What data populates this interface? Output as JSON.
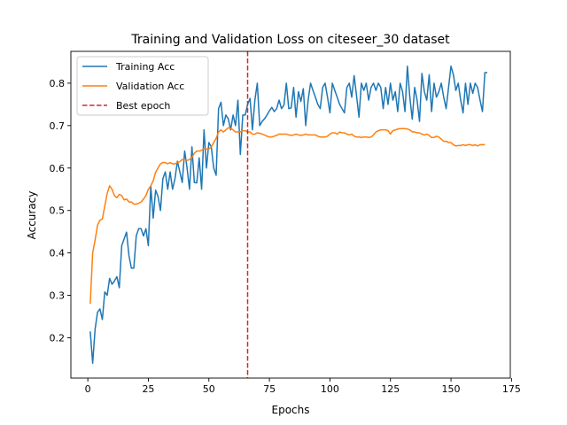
{
  "chart_data": {
    "type": "line",
    "title": "Training and Validation Loss on citeseer_30 dataset",
    "xlabel": "Epochs",
    "ylabel": "Accuracy",
    "xlim": [
      -7,
      174.5
    ],
    "ylim": [
      0.105,
      0.875
    ],
    "xticks": [
      0,
      25,
      50,
      75,
      100,
      125,
      150,
      175
    ],
    "yticks": [
      0.2,
      0.3,
      0.4,
      0.5,
      0.6,
      0.7,
      0.8
    ],
    "xtick_labels": [
      "0",
      "25",
      "50",
      "75",
      "100",
      "125",
      "150",
      "175"
    ],
    "ytick_labels": [
      "0.2",
      "0.3",
      "0.4",
      "0.5",
      "0.6",
      "0.7",
      "0.8"
    ],
    "grid": false,
    "legend_position": "upper-left",
    "x_start": 1,
    "series": [
      {
        "name": "Training Acc",
        "color": "#1f77b4",
        "values": [
          0.215,
          0.14,
          0.22,
          0.26,
          0.268,
          0.243,
          0.308,
          0.3,
          0.34,
          0.326,
          0.334,
          0.344,
          0.318,
          0.417,
          0.433,
          0.449,
          0.393,
          0.364,
          0.364,
          0.44,
          0.457,
          0.457,
          0.44,
          0.457,
          0.417,
          0.558,
          0.482,
          0.548,
          0.533,
          0.5,
          0.575,
          0.591,
          0.55,
          0.591,
          0.55,
          0.575,
          0.616,
          0.591,
          0.566,
          0.64,
          0.6,
          0.55,
          0.65,
          0.566,
          0.565,
          0.624,
          0.55,
          0.69,
          0.6,
          0.66,
          0.65,
          0.6,
          0.583,
          0.74,
          0.755,
          0.7,
          0.725,
          0.716,
          0.69,
          0.725,
          0.7,
          0.76,
          0.632,
          0.725,
          0.725,
          0.75,
          0.764,
          0.69,
          0.76,
          0.8,
          0.7,
          0.71,
          0.716,
          0.725,
          0.735,
          0.743,
          0.733,
          0.74,
          0.76,
          0.74,
          0.748,
          0.8,
          0.74,
          0.742,
          0.79,
          0.72,
          0.78,
          0.757,
          0.787,
          0.7,
          0.76,
          0.8,
          0.783,
          0.767,
          0.75,
          0.74,
          0.79,
          0.8,
          0.767,
          0.73,
          0.8,
          0.783,
          0.767,
          0.75,
          0.74,
          0.73,
          0.79,
          0.8,
          0.767,
          0.818,
          0.77,
          0.72,
          0.8,
          0.783,
          0.8,
          0.76,
          0.79,
          0.8,
          0.783,
          0.8,
          0.79,
          0.74,
          0.79,
          0.75,
          0.8,
          0.76,
          0.78,
          0.733,
          0.8,
          0.78,
          0.733,
          0.84,
          0.767,
          0.715,
          0.79,
          0.76,
          0.71,
          0.823,
          0.78,
          0.76,
          0.82,
          0.733,
          0.8,
          0.767,
          0.78,
          0.8,
          0.767,
          0.74,
          0.79,
          0.84,
          0.82,
          0.783,
          0.8,
          0.76,
          0.73,
          0.8,
          0.75,
          0.8,
          0.776,
          0.8,
          0.79,
          0.76,
          0.733,
          0.825,
          0.825
        ],
        "truncate_to": 167
      },
      {
        "name": "Validation Acc",
        "color": "#ff7f0e",
        "values": [
          0.28,
          0.4,
          0.43,
          0.465,
          0.477,
          0.48,
          0.51,
          0.54,
          0.558,
          0.55,
          0.535,
          0.53,
          0.538,
          0.535,
          0.525,
          0.527,
          0.52,
          0.52,
          0.515,
          0.515,
          0.517,
          0.52,
          0.527,
          0.535,
          0.55,
          0.558,
          0.57,
          0.59,
          0.6,
          0.61,
          0.613,
          0.613,
          0.61,
          0.613,
          0.61,
          0.61,
          0.613,
          0.615,
          0.62,
          0.62,
          0.618,
          0.62,
          0.625,
          0.635,
          0.64,
          0.64,
          0.642,
          0.645,
          0.645,
          0.645,
          0.65,
          0.66,
          0.67,
          0.685,
          0.69,
          0.685,
          0.69,
          0.695,
          0.693,
          0.69,
          0.685,
          0.685,
          0.685,
          0.688,
          0.688,
          0.685,
          0.685,
          0.68,
          0.68,
          0.683,
          0.682,
          0.68,
          0.678,
          0.675,
          0.673,
          0.673,
          0.675,
          0.677,
          0.68,
          0.68,
          0.68,
          0.68,
          0.678,
          0.677,
          0.678,
          0.68,
          0.678,
          0.677,
          0.678,
          0.68,
          0.678,
          0.678,
          0.678,
          0.678,
          0.675,
          0.673,
          0.673,
          0.673,
          0.675,
          0.68,
          0.683,
          0.683,
          0.68,
          0.685,
          0.683,
          0.683,
          0.68,
          0.678,
          0.68,
          0.675,
          0.673,
          0.673,
          0.672,
          0.673,
          0.673,
          0.672,
          0.673,
          0.678,
          0.685,
          0.688,
          0.69,
          0.69,
          0.69,
          0.688,
          0.68,
          0.688,
          0.69,
          0.692,
          0.693,
          0.693,
          0.693,
          0.692,
          0.69,
          0.685,
          0.685,
          0.683,
          0.683,
          0.68,
          0.678,
          0.68,
          0.677,
          0.672,
          0.672,
          0.675,
          0.673,
          0.668,
          0.663,
          0.663,
          0.66,
          0.66,
          0.655,
          0.652,
          0.653,
          0.653,
          0.655,
          0.653,
          0.655,
          0.655,
          0.653,
          0.655,
          0.652,
          0.655,
          0.655,
          0.655
        ],
        "truncate_to": 167
      }
    ],
    "vlines": [
      {
        "name": "Best epoch",
        "x": 66,
        "color": "#d62728",
        "style": "dashed"
      }
    ],
    "legend": [
      "Training Acc",
      "Validation Acc",
      "Best epoch"
    ]
  }
}
